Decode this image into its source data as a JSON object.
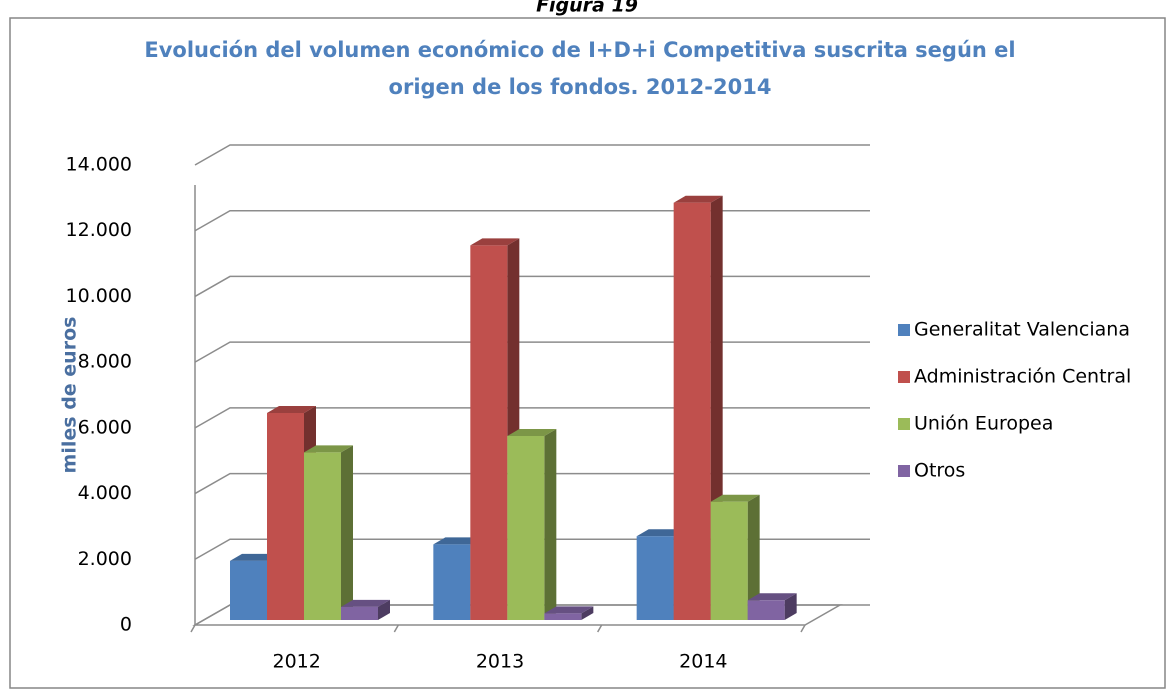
{
  "chart_data": {
    "type": "bar3d",
    "caption": "Figura 19",
    "title": [
      "Evolución del volumen económico de I+D+i Competitiva suscrita según el",
      "origen de los fondos. 2012-2014"
    ],
    "ylabel": "miles de euros",
    "categories": [
      "2012",
      "2013",
      "2014"
    ],
    "series": [
      {
        "name": "Generalitat Valenciana",
        "color": "#4f81bd",
        "values": [
          1800,
          2300,
          2550
        ]
      },
      {
        "name": "Administración Central",
        "color": "#c0504d",
        "values": [
          6300,
          11400,
          12700
        ]
      },
      {
        "name": "Unión Europea",
        "color": "#9bbb59",
        "values": [
          5100,
          5600,
          3600
        ]
      },
      {
        "name": "Otros",
        "color": "#8064a2",
        "values": [
          400,
          200,
          600
        ]
      }
    ],
    "ylim": [
      0,
      14000
    ],
    "yticks": [
      0,
      {
        "value": 2000,
        "label": "2.000"
      },
      {
        "value": 4000,
        "label": "4.000"
      },
      {
        "value": 6000,
        "label": "6.000"
      },
      {
        "value": 8000,
        "label": "8.000"
      },
      {
        "value": 10000,
        "label": "10.000"
      },
      {
        "value": 12000,
        "label": "12.000"
      },
      {
        "value": 14000,
        "label": "14.000"
      }
    ],
    "grid": true,
    "legend": "right"
  }
}
